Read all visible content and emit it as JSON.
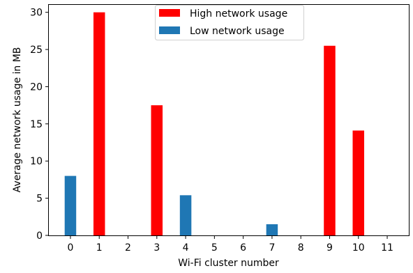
{
  "chart_data": {
    "type": "bar",
    "x": [
      0,
      1,
      2,
      3,
      4,
      5,
      6,
      7,
      8,
      9,
      10,
      11
    ],
    "xlabel": "Wi-Fi cluster number",
    "ylabel": "Average network usage in MB",
    "ylim": [
      0,
      31
    ],
    "yticks": [
      0,
      5,
      10,
      15,
      20,
      25,
      30
    ],
    "grid": false,
    "legend_position": "top-center",
    "series": [
      {
        "name": "High network usage",
        "color": "#ff0000",
        "points": [
          {
            "x": 1,
            "y": 30.0
          },
          {
            "x": 3,
            "y": 17.5
          },
          {
            "x": 9,
            "y": 25.5
          },
          {
            "x": 10,
            "y": 14.1
          }
        ]
      },
      {
        "name": "Low network usage",
        "color": "#1f77b4",
        "points": [
          {
            "x": 0,
            "y": 8.0
          },
          {
            "x": 4,
            "y": 5.4
          },
          {
            "x": 7,
            "y": 1.5
          }
        ]
      }
    ]
  }
}
